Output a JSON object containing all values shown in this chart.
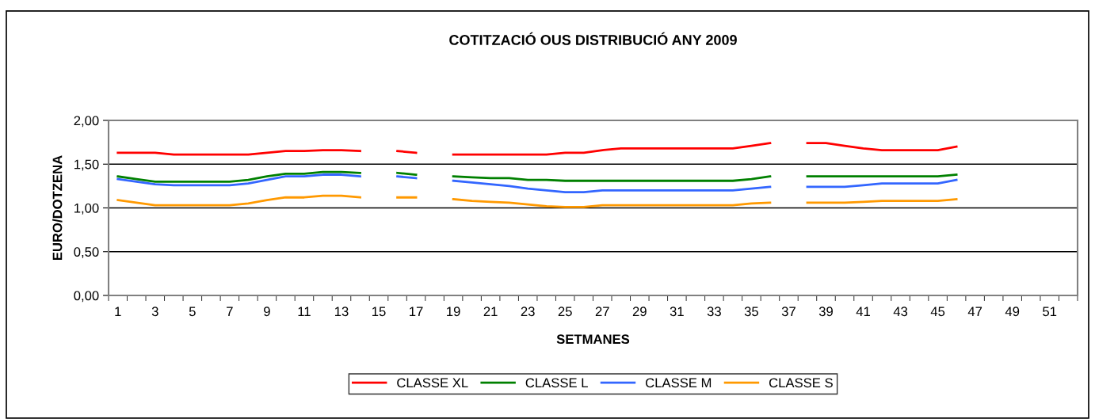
{
  "chart_data": {
    "type": "line",
    "title": "COTITZACIÓ OUS DISTRIBUCIÓ ANY 2009",
    "xlabel": "SETMANES",
    "ylabel": "EURO/DOTZENA",
    "categories": [
      "1",
      null,
      "3",
      null,
      "5",
      null,
      "7",
      null,
      "9",
      null,
      "11",
      null,
      "13",
      null,
      "15",
      null,
      "17",
      null,
      "19",
      null,
      "21",
      null,
      "23",
      null,
      "25",
      null,
      "27",
      null,
      "29",
      null,
      "31",
      null,
      "33",
      null,
      "35",
      null,
      "37",
      null,
      "39",
      null,
      "41",
      null,
      "43",
      null,
      "45",
      null,
      "47",
      null,
      "49",
      null,
      "51",
      null
    ],
    "ylim": [
      0,
      2
    ],
    "yticks": [
      {
        "value": 0,
        "label": "0,00"
      },
      {
        "value": 0.5,
        "label": "0,50"
      },
      {
        "value": 1,
        "label": "1,00"
      },
      {
        "value": 1.5,
        "label": "1,50"
      },
      {
        "value": 2,
        "label": "2,00"
      }
    ],
    "grid": "y",
    "legend": "bottom",
    "marker": "none",
    "line_style": "solid",
    "series": [
      {
        "name": "CLASSE XL",
        "color": "#ff0000",
        "values": [
          1.63,
          1.63,
          1.63,
          1.61,
          1.61,
          1.61,
          1.61,
          1.61,
          1.63,
          1.65,
          1.65,
          1.66,
          1.66,
          1.65,
          null,
          1.65,
          1.63,
          null,
          1.61,
          1.61,
          1.61,
          1.61,
          1.61,
          1.61,
          1.63,
          1.63,
          1.66,
          1.68,
          1.68,
          1.68,
          1.68,
          1.68,
          1.68,
          1.68,
          1.71,
          1.74,
          null,
          1.74,
          1.74,
          1.71,
          1.68,
          1.66,
          1.66,
          1.66,
          1.66,
          1.7,
          null,
          null,
          null,
          null,
          null,
          null
        ]
      },
      {
        "name": "CLASSE L",
        "color": "#008000",
        "values": [
          1.36,
          1.33,
          1.3,
          1.3,
          1.3,
          1.3,
          1.3,
          1.32,
          1.36,
          1.39,
          1.39,
          1.41,
          1.41,
          1.4,
          null,
          1.4,
          1.38,
          null,
          1.36,
          1.35,
          1.34,
          1.34,
          1.32,
          1.32,
          1.31,
          1.31,
          1.31,
          1.31,
          1.31,
          1.31,
          1.31,
          1.31,
          1.31,
          1.31,
          1.33,
          1.36,
          null,
          1.36,
          1.36,
          1.36,
          1.36,
          1.36,
          1.36,
          1.36,
          1.36,
          1.38,
          null,
          null,
          null,
          null,
          null,
          null
        ]
      },
      {
        "name": "CLASSE M",
        "color": "#3366ff",
        "values": [
          1.33,
          1.3,
          1.27,
          1.26,
          1.26,
          1.26,
          1.26,
          1.28,
          1.32,
          1.36,
          1.36,
          1.38,
          1.38,
          1.36,
          null,
          1.36,
          1.34,
          null,
          1.31,
          1.29,
          1.27,
          1.25,
          1.22,
          1.2,
          1.18,
          1.18,
          1.2,
          1.2,
          1.2,
          1.2,
          1.2,
          1.2,
          1.2,
          1.2,
          1.22,
          1.24,
          null,
          1.24,
          1.24,
          1.24,
          1.26,
          1.28,
          1.28,
          1.28,
          1.28,
          1.32,
          null,
          null,
          null,
          null,
          null,
          null
        ]
      },
      {
        "name": "CLASSE S",
        "color": "#ff9900",
        "values": [
          1.09,
          1.06,
          1.03,
          1.03,
          1.03,
          1.03,
          1.03,
          1.05,
          1.09,
          1.12,
          1.12,
          1.14,
          1.14,
          1.12,
          null,
          1.12,
          1.12,
          null,
          1.1,
          1.08,
          1.07,
          1.06,
          1.04,
          1.02,
          1.01,
          1.01,
          1.03,
          1.03,
          1.03,
          1.03,
          1.03,
          1.03,
          1.03,
          1.03,
          1.05,
          1.06,
          null,
          1.06,
          1.06,
          1.06,
          1.07,
          1.08,
          1.08,
          1.08,
          1.08,
          1.1,
          null,
          null,
          null,
          null,
          null,
          null
        ]
      }
    ]
  }
}
